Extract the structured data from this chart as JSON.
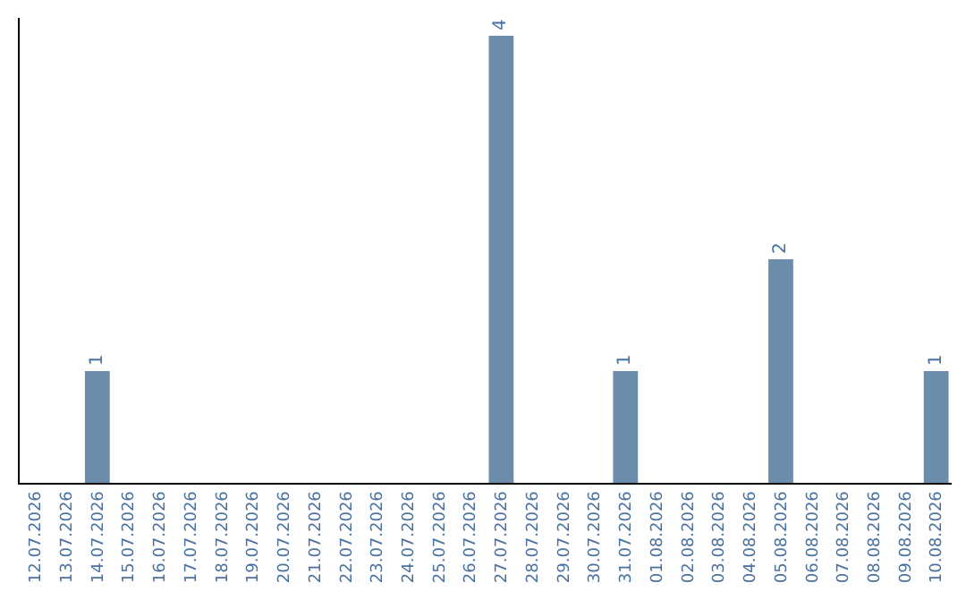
{
  "chart_data": {
    "type": "bar",
    "categories": [
      "12.07.2026",
      "13.07.2026",
      "14.07.2026",
      "15.07.2026",
      "16.07.2026",
      "17.07.2026",
      "18.07.2026",
      "19.07.2026",
      "20.07.2026",
      "21.07.2026",
      "22.07.2026",
      "23.07.2026",
      "24.07.2026",
      "25.07.2026",
      "26.07.2026",
      "27.07.2026",
      "28.07.2026",
      "29.07.2026",
      "30.07.2026",
      "31.07.2026",
      "01.08.2026",
      "02.08.2026",
      "03.08.2026",
      "04.08.2026",
      "05.08.2026",
      "06.08.2026",
      "07.08.2026",
      "08.08.2026",
      "09.08.2026",
      "10.08.2026"
    ],
    "values": [
      0,
      0,
      1,
      0,
      0,
      0,
      0,
      0,
      0,
      0,
      0,
      0,
      0,
      0,
      0,
      4,
      0,
      0,
      0,
      1,
      0,
      0,
      0,
      0,
      2,
      0,
      0,
      0,
      0,
      1
    ],
    "value_labels": [
      null,
      null,
      "1",
      null,
      null,
      null,
      null,
      null,
      null,
      null,
      null,
      null,
      null,
      null,
      null,
      "4",
      null,
      null,
      null,
      "1",
      null,
      null,
      null,
      null,
      "2",
      null,
      null,
      null,
      null,
      "1"
    ],
    "color": "#6b8cab",
    "legend": false,
    "tick_labels": "x"
  }
}
